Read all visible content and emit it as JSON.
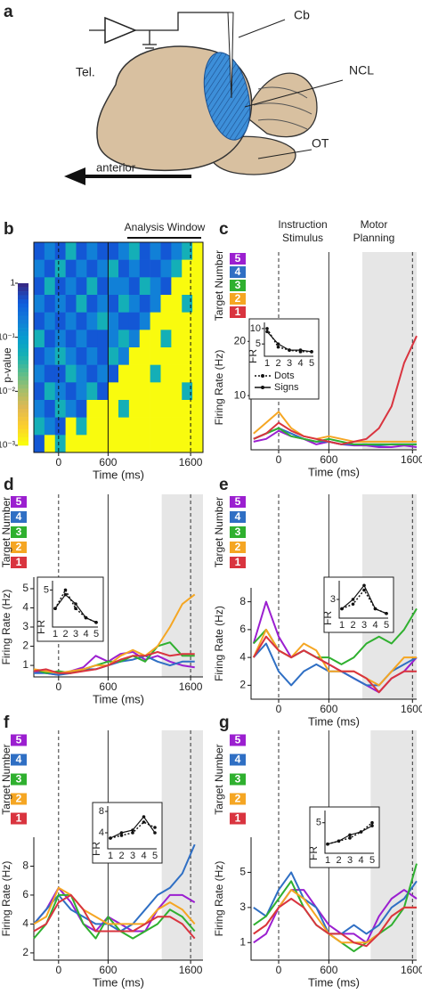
{
  "diagram": {
    "panel": "a",
    "labels": [
      "Cb",
      "Tel.",
      "NCL",
      "OT",
      "anterior"
    ]
  },
  "chart_data": [
    {
      "type": "heatmap",
      "panel": "b",
      "title": "Analysis Window",
      "xlabel": "Time (ms)",
      "colorbar_label": "p-value",
      "xlim": [
        -300,
        1750
      ],
      "xticks": [
        0,
        600,
        1600
      ],
      "event_lines": [
        "dashed",
        "solid",
        "dashed"
      ],
      "clim": [
        0.001,
        1
      ],
      "cticks": [
        1,
        {
          "value": 0.1,
          "label": "10⁻¹"
        },
        {
          "value": 0.01,
          "label": "10⁻²"
        },
        {
          "value": 0.001,
          "label": "10⁻³"
        }
      ],
      "values": [
        [
          0.5,
          0.2,
          0.5,
          0.05,
          0.5,
          0.2,
          0.5,
          0.5,
          0.2,
          0.05,
          0.5,
          0.2,
          0.5,
          0.2,
          0.05,
          0.001
        ],
        [
          0.2,
          0.5,
          0.05,
          0.5,
          0.2,
          0.5,
          0.2,
          0.05,
          0.5,
          0.2,
          0.5,
          0.5,
          0.2,
          0.05,
          0.001,
          0.001
        ],
        [
          0.5,
          0.05,
          0.5,
          0.2,
          0.5,
          0.05,
          0.5,
          0.2,
          0.2,
          0.5,
          0.05,
          0.2,
          0.5,
          0.001,
          0.001,
          0.001
        ],
        [
          0.2,
          0.5,
          0.2,
          0.5,
          0.05,
          0.5,
          0.2,
          0.5,
          0.05,
          0.2,
          0.5,
          0.2,
          0.001,
          0.001,
          0.05,
          0.001
        ],
        [
          0.5,
          0.2,
          0.5,
          0.2,
          0.5,
          0.2,
          0.05,
          0.2,
          0.5,
          0.5,
          0.2,
          0.001,
          0.001,
          0.001,
          0.001,
          0.001
        ],
        [
          0.05,
          0.5,
          0.2,
          0.5,
          0.2,
          0.5,
          0.5,
          0.2,
          0.05,
          0.2,
          0.001,
          0.001,
          0.05,
          0.001,
          0.001,
          0.001
        ],
        [
          0.5,
          0.2,
          0.05,
          0.2,
          0.5,
          0.2,
          0.5,
          0.05,
          0.2,
          0.001,
          0.001,
          0.001,
          0.001,
          0.001,
          0.001,
          0.001
        ],
        [
          0.2,
          0.5,
          0.5,
          0.05,
          0.2,
          0.5,
          0.2,
          0.5,
          0.001,
          0.001,
          0.001,
          0.05,
          0.001,
          0.001,
          0.001,
          0.001
        ],
        [
          0.5,
          0.05,
          0.2,
          0.5,
          0.2,
          0.05,
          0.5,
          0.001,
          0.001,
          0.001,
          0.001,
          0.001,
          0.001,
          0.001,
          0.05,
          0.001
        ],
        [
          0.2,
          0.5,
          0.05,
          0.2,
          0.5,
          0.001,
          0.001,
          0.001,
          0.05,
          0.001,
          0.001,
          0.001,
          0.001,
          0.001,
          0.001,
          0.001
        ],
        [
          0.05,
          0.2,
          0.5,
          0.001,
          0.05,
          0.001,
          0.001,
          0.001,
          0.001,
          0.001,
          0.001,
          0.001,
          0.001,
          0.001,
          0.001,
          0.001
        ],
        [
          0.5,
          0.001,
          0.05,
          0.001,
          0.001,
          0.001,
          0.001,
          0.001,
          0.001,
          0.001,
          0.001,
          0.001,
          0.001,
          0.001,
          0.001,
          0.001
        ]
      ]
    },
    {
      "type": "line",
      "panel": "c",
      "annotations": [
        "Instruction",
        "Stimulus",
        "Motor",
        "Planning"
      ],
      "raster_label": "Target Number",
      "ylabel": "Firing Rate (Hz)",
      "xlabel": "Time (ms)",
      "xlim": [
        -330,
        1650
      ],
      "xticks": [
        0,
        600,
        1600
      ],
      "event_lines": [
        "dashed",
        "solid",
        "dashed"
      ],
      "shade": [
        1000,
        1650
      ],
      "ylim": [
        0,
        23
      ],
      "yticks": [
        10,
        20
      ],
      "x": [
        -300,
        -150,
        0,
        150,
        300,
        450,
        600,
        750,
        900,
        1050,
        1200,
        1350,
        1500,
        1650
      ],
      "series": [
        {
          "name": "5",
          "color": "#9b1fd0",
          "values": [
            1.5,
            2,
            3.5,
            2.5,
            2,
            1,
            1.5,
            1,
            0.8,
            0.8,
            0.5,
            0.5,
            0.8,
            0.5
          ]
        },
        {
          "name": "4",
          "color": "#2f6fc4",
          "values": [
            2,
            3,
            4,
            3,
            2,
            1.5,
            1.5,
            1,
            1,
            1,
            0.8,
            1,
            1,
            1
          ]
        },
        {
          "name": "3",
          "color": "#2fb02f",
          "values": [
            2,
            3,
            4,
            2.5,
            2,
            1.5,
            2,
            1.5,
            1,
            1,
            1,
            1,
            1,
            1
          ]
        },
        {
          "name": "2",
          "color": "#f5a623",
          "values": [
            3,
            5,
            7,
            4,
            2.5,
            2,
            2.5,
            2,
            1.5,
            1.5,
            1.5,
            1.5,
            1.5,
            1.5
          ]
        },
        {
          "name": "1",
          "color": "#d9343f",
          "values": [
            2,
            3,
            5,
            3.5,
            2.5,
            2,
            1.5,
            1,
            1.5,
            2,
            4,
            8,
            16,
            21
          ]
        }
      ],
      "inset": {
        "ylabel": "FR",
        "xticks": [
          1,
          2,
          3,
          4,
          5
        ],
        "ylim": [
          1,
          12
        ],
        "yticks": [
          5,
          10
        ],
        "series": [
          {
            "name": "Dots",
            "dashed": true,
            "values": [
              10,
              4,
              3,
              2.5,
              2.5
            ]
          },
          {
            "name": "Signs",
            "dashed": false,
            "values": [
              9,
              5,
              3,
              3,
              2.5
            ]
          }
        ]
      }
    },
    {
      "type": "line",
      "panel": "d",
      "raster_label": "Target Number",
      "ylabel": "Firing Rate (Hz)",
      "xlabel": "Time (ms)",
      "xlim": [
        -300,
        1750
      ],
      "xticks": [
        0,
        600,
        1600
      ],
      "event_lines": [
        "dashed",
        "solid",
        "dashed"
      ],
      "shade": [
        1250,
        1750
      ],
      "ylim": [
        0.4,
        5.6
      ],
      "yticks": [
        1,
        2,
        3,
        4,
        5
      ],
      "x": [
        -300,
        -150,
        0,
        150,
        300,
        450,
        600,
        750,
        900,
        1050,
        1200,
        1350,
        1500,
        1650
      ],
      "series": [
        {
          "name": "5",
          "color": "#9b1fd0",
          "values": [
            0.7,
            0.6,
            0.5,
            0.7,
            0.9,
            1.5,
            1.2,
            1.6,
            1.7,
            1.3,
            1.5,
            1.2,
            1,
            0.9
          ]
        },
        {
          "name": "4",
          "color": "#2f6fc4",
          "values": [
            0.6,
            0.6,
            0.5,
            0.6,
            0.8,
            0.8,
            1,
            1.2,
            1.3,
            1.5,
            1.2,
            1,
            1.2,
            1.2
          ]
        },
        {
          "name": "3",
          "color": "#2fb02f",
          "values": [
            0.8,
            0.6,
            0.7,
            0.6,
            0.8,
            1,
            1.2,
            1.2,
            1.5,
            1.2,
            2,
            2.2,
            1.5,
            1.5
          ]
        },
        {
          "name": "2",
          "color": "#f5a623",
          "values": [
            0.8,
            0.7,
            0.6,
            0.7,
            0.8,
            1,
            1,
            1.5,
            1.8,
            1.5,
            2,
            3,
            4.2,
            4.7
          ]
        },
        {
          "name": "1",
          "color": "#d9343f",
          "values": [
            0.7,
            0.8,
            0.6,
            0.6,
            0.7,
            0.8,
            1,
            1.3,
            1.5,
            1.5,
            1.7,
            1.5,
            1.6,
            1.6
          ]
        }
      ],
      "inset": {
        "ylabel": "FR",
        "xticks": [
          1,
          2,
          3,
          4,
          5
        ],
        "ylim": [
          1,
          6
        ],
        "yticks": [
          5
        ],
        "series": [
          {
            "dashed": true,
            "values": [
              3,
              5,
              3,
              2,
              1.5
            ]
          },
          {
            "dashed": false,
            "values": [
              3,
              4.5,
              3.5,
              2,
              1.5
            ]
          }
        ]
      }
    },
    {
      "type": "line",
      "panel": "e",
      "raster_label": "Target Number",
      "ylabel": "Firing Rate (Hz)",
      "xlabel": "Time (ms)",
      "xlim": [
        -330,
        1650
      ],
      "xticks": [
        0,
        600,
        1600
      ],
      "event_lines": [
        "dashed",
        "solid",
        "dashed"
      ],
      "shade": [
        1000,
        1650
      ],
      "ylim": [
        1,
        9
      ],
      "yticks": [
        2,
        4,
        6,
        8
      ],
      "x": [
        -300,
        -150,
        0,
        150,
        300,
        450,
        600,
        750,
        900,
        1050,
        1200,
        1350,
        1500,
        1650
      ],
      "series": [
        {
          "name": "5",
          "color": "#9b1fd0",
          "values": [
            5,
            8,
            5.5,
            4,
            4.5,
            4,
            3.5,
            3,
            2.5,
            2,
            1.5,
            2.5,
            3,
            4
          ]
        },
        {
          "name": "4",
          "color": "#2f6fc4",
          "values": [
            4,
            5,
            3,
            2,
            3,
            3.5,
            3,
            3,
            2.5,
            2,
            2,
            3,
            3.5,
            4
          ]
        },
        {
          "name": "3",
          "color": "#2fb02f",
          "values": [
            5,
            6,
            4.5,
            4,
            4.5,
            4,
            4,
            3.5,
            4,
            5,
            5.5,
            5,
            6,
            7.5
          ]
        },
        {
          "name": "2",
          "color": "#f5a623",
          "values": [
            4,
            6,
            4.5,
            4,
            5,
            4.5,
            3,
            3,
            3,
            2.5,
            2,
            3,
            4,
            4
          ]
        },
        {
          "name": "1",
          "color": "#d9343f",
          "values": [
            4,
            5.5,
            4.5,
            4,
            4.5,
            4,
            3.5,
            3,
            3,
            2.5,
            1.5,
            2.5,
            3,
            3
          ]
        }
      ],
      "inset": {
        "ylabel": "FR",
        "xticks": [
          1,
          2,
          3,
          4,
          5
        ],
        "ylim": [
          1,
          5
        ],
        "yticks": [
          3
        ],
        "series": [
          {
            "dashed": true,
            "values": [
              2,
              2.5,
              4,
              2,
              1.5
            ]
          },
          {
            "dashed": false,
            "values": [
              2,
              3,
              4.5,
              2,
              1.5
            ]
          }
        ]
      }
    },
    {
      "type": "line",
      "panel": "f",
      "raster_label": "Target Number",
      "ylabel": "Firing Rate (Hz)",
      "xlabel": "Time (ms)",
      "xlim": [
        -300,
        1750
      ],
      "xticks": [
        0,
        600,
        1600
      ],
      "event_lines": [
        "dashed",
        "solid",
        "dashed"
      ],
      "shade": [
        1250,
        1750
      ],
      "ylim": [
        1.5,
        10
      ],
      "yticks": [
        2,
        4,
        6,
        8
      ],
      "x": [
        -300,
        -150,
        0,
        150,
        300,
        450,
        600,
        750,
        900,
        1050,
        1200,
        1350,
        1500,
        1650
      ],
      "series": [
        {
          "name": "5",
          "color": "#9b1fd0",
          "values": [
            4,
            5,
            6.5,
            5.5,
            4,
            3.5,
            4.5,
            4,
            3.5,
            3.5,
            5,
            6,
            6,
            5.5
          ]
        },
        {
          "name": "4",
          "color": "#2f6fc4",
          "values": [
            4,
            5,
            6,
            5,
            4.5,
            4,
            4,
            3.5,
            4,
            5,
            6,
            6.5,
            7.5,
            9.5
          ]
        },
        {
          "name": "3",
          "color": "#2fb02f",
          "values": [
            3,
            4,
            6,
            6,
            4,
            3,
            4.5,
            3.5,
            3,
            3.5,
            4,
            5,
            4.5,
            3.5
          ]
        },
        {
          "name": "2",
          "color": "#f5a623",
          "values": [
            4,
            4.5,
            6.5,
            6,
            5,
            4.5,
            4,
            4,
            4,
            4,
            5,
            5.5,
            5,
            4
          ]
        },
        {
          "name": "1",
          "color": "#d9343f",
          "values": [
            3.5,
            4,
            5.5,
            6,
            5,
            3.5,
            3.5,
            3.5,
            3.5,
            4,
            4.5,
            4.5,
            4,
            3
          ]
        }
      ],
      "inset": {
        "ylabel": "FR",
        "xticks": [
          1,
          2,
          3,
          4,
          5
        ],
        "ylim": [
          1,
          9
        ],
        "yticks": [
          4,
          8
        ],
        "series": [
          {
            "dashed": true,
            "values": [
              3,
              3.5,
              4,
              6,
              5
            ]
          },
          {
            "dashed": false,
            "values": [
              3,
              4,
              4.5,
              7,
              4
            ]
          }
        ]
      }
    },
    {
      "type": "line",
      "panel": "g",
      "raster_label": "Target Number",
      "ylabel": "Firing Rate (Hz)",
      "xlabel": "Time (ms)",
      "xlim": [
        -330,
        1650
      ],
      "xticks": [
        0,
        600,
        1600
      ],
      "event_lines": [
        "dashed",
        "solid",
        "dashed"
      ],
      "shade": [
        1100,
        1650
      ],
      "ylim": [
        0,
        7
      ],
      "yticks": [
        1,
        3,
        5
      ],
      "x": [
        -300,
        -150,
        0,
        150,
        300,
        450,
        600,
        750,
        900,
        1050,
        1200,
        1350,
        1500,
        1650
      ],
      "series": [
        {
          "name": "5",
          "color": "#9b1fd0",
          "values": [
            1,
            1.5,
            3,
            4,
            4,
            3,
            2,
            1.5,
            1.5,
            1,
            2.5,
            3.5,
            4,
            3.5
          ]
        },
        {
          "name": "4",
          "color": "#2f6fc4",
          "values": [
            3,
            2.5,
            4,
            5,
            3.5,
            3,
            1.5,
            1.5,
            2,
            1.5,
            2,
            3,
            3.5,
            4.5
          ]
        },
        {
          "name": "3",
          "color": "#2fb02f",
          "values": [
            2,
            2.5,
            3.5,
            4.5,
            3,
            2,
            1.5,
            1,
            0.5,
            1,
            1.5,
            2,
            3,
            5.5
          ]
        },
        {
          "name": "2",
          "color": "#f5a623",
          "values": [
            1.5,
            2,
            3,
            4,
            3.5,
            2.5,
            1.5,
            1,
            1,
            1,
            1.5,
            2.5,
            3,
            3
          ]
        },
        {
          "name": "1",
          "color": "#d9343f",
          "values": [
            1.5,
            2,
            3,
            3.5,
            3,
            2,
            1.5,
            1.5,
            1,
            0.8,
            1.5,
            2.5,
            3,
            3
          ]
        }
      ],
      "inset": {
        "ylabel": "FR",
        "xticks": [
          1,
          2,
          3,
          4,
          5
        ],
        "ylim": [
          0,
          7
        ],
        "yticks": [
          5
        ],
        "series": [
          {
            "dashed": true,
            "values": [
              1.5,
              2,
              2.5,
              3.5,
              5
            ]
          },
          {
            "dashed": false,
            "values": [
              1.5,
              2,
              3,
              3.5,
              4.5
            ]
          }
        ]
      }
    }
  ]
}
